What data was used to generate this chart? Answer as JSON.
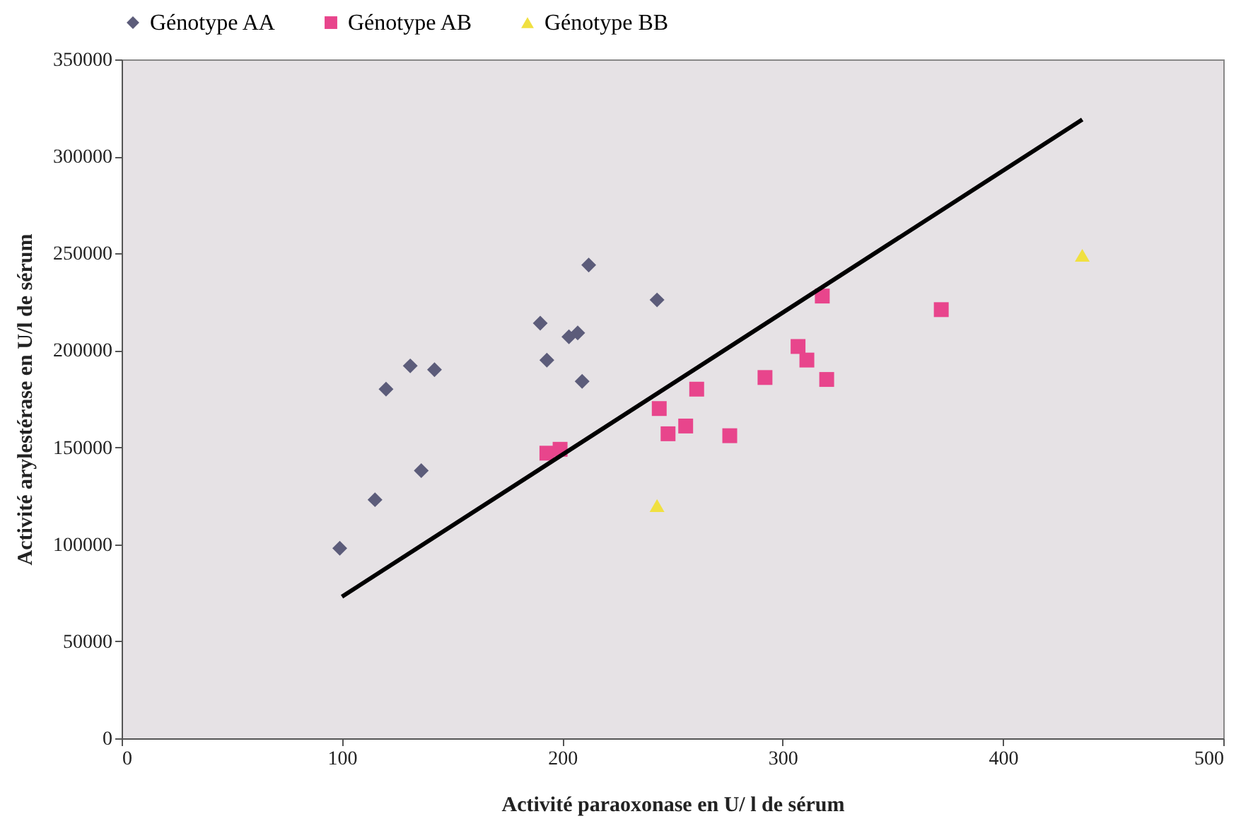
{
  "chart_data": {
    "type": "scatter",
    "xlabel": "Activité paraoxonase en U/ l de sérum",
    "ylabel": "Activité arylestérase en U/l de sérum",
    "xlim": [
      0,
      500
    ],
    "xticks": [
      0,
      100,
      200,
      300,
      400,
      500
    ],
    "ylim": [
      0,
      350000
    ],
    "yticks": [
      0,
      50000,
      100000,
      150000,
      200000,
      250000,
      300000,
      350000
    ],
    "grid": false,
    "legend": "top",
    "series": [
      {
        "name": "Génotype AA",
        "color": "#5c5c7a",
        "marker": "diamond",
        "x": [
          99,
          115,
          120,
          131,
          142,
          136,
          190,
          193,
          203,
          207,
          209,
          212,
          243
        ],
        "values": [
          98000,
          123000,
          180000,
          192000,
          190000,
          138000,
          214000,
          195000,
          207000,
          209000,
          184000,
          244000,
          226000
        ]
      },
      {
        "name": "Génotype AB",
        "color": "#e8458c",
        "marker": "square",
        "x": [
          193,
          199,
          244,
          248,
          256,
          261,
          276,
          292,
          307,
          311,
          320,
          318,
          372
        ],
        "values": [
          147000,
          149000,
          170000,
          157000,
          161000,
          180000,
          156000,
          186000,
          202000,
          195000,
          185000,
          228000,
          221000
        ]
      },
      {
        "name": "Génotype BB",
        "color": "#f0e040",
        "marker": "triangle",
        "x": [
          243,
          436
        ],
        "values": [
          120000,
          249000
        ]
      },
      {
        "type": "line",
        "color": "#000000",
        "x": [
          100,
          436
        ],
        "values": [
          73000,
          319000
        ]
      }
    ]
  }
}
